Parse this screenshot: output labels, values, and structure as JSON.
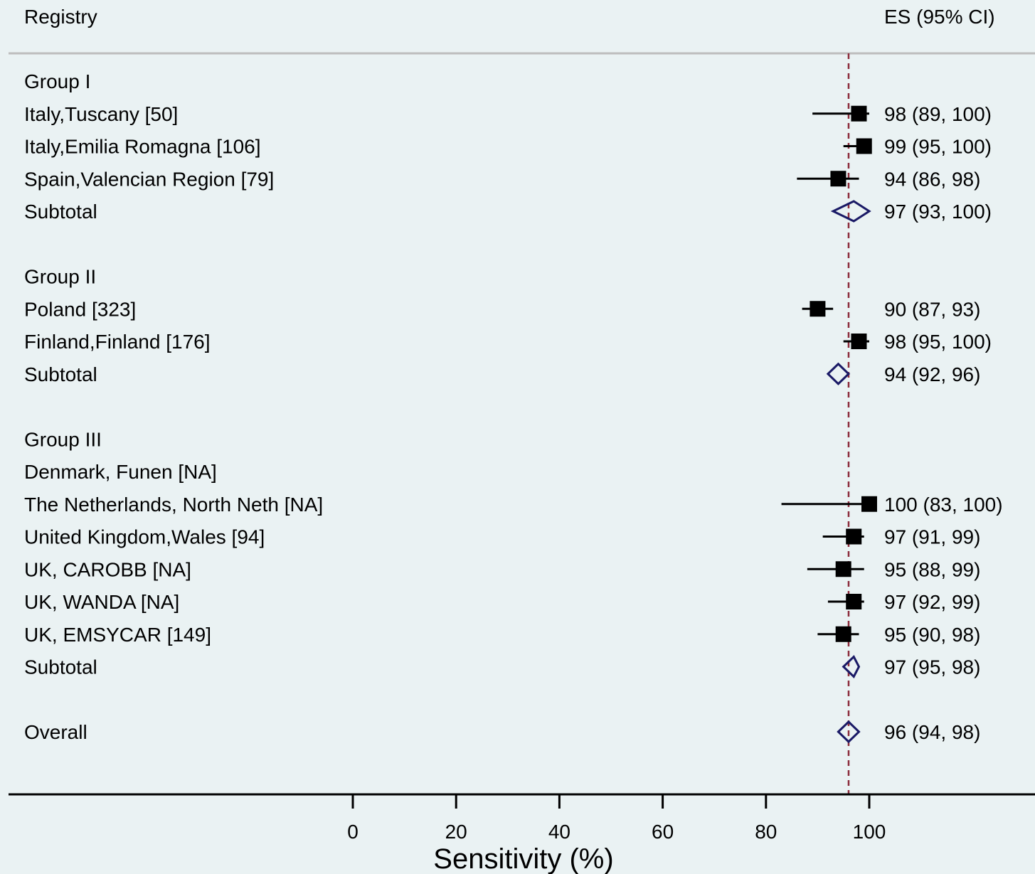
{
  "chart_data": {
    "type": "forest",
    "header": {
      "left": "Registry",
      "right": "ES (95% CI)"
    },
    "xlabel": "Sensitivity (%)",
    "xlim": [
      0,
      100
    ],
    "xticks": [
      0,
      20,
      40,
      60,
      80,
      100
    ],
    "reference_line": 96,
    "colors": {
      "background": "#eaf2f3",
      "study": "#000000",
      "pooled": "#1a1a66",
      "reference": "#8b2a3a",
      "divider": "#bdbdbd"
    },
    "rows": [
      {
        "kind": "group",
        "label": "Group I"
      },
      {
        "kind": "study",
        "label": "Italy,Tuscany [50]",
        "es": 98,
        "lo": 89,
        "hi": 100,
        "text": "98 (89, 100)"
      },
      {
        "kind": "study",
        "label": "Italy,Emilia Romagna [106]",
        "es": 99,
        "lo": 95,
        "hi": 100,
        "text": "99 (95, 100)"
      },
      {
        "kind": "study",
        "label": "Spain,Valencian Region [79]",
        "es": 94,
        "lo": 86,
        "hi": 98,
        "text": "94 (86, 98)"
      },
      {
        "kind": "subtotal",
        "label": "Subtotal",
        "es": 97,
        "lo": 93,
        "hi": 100,
        "text": "97 (93, 100)"
      },
      {
        "kind": "blank"
      },
      {
        "kind": "group",
        "label": "Group II"
      },
      {
        "kind": "study",
        "label": "Poland [323]",
        "es": 90,
        "lo": 87,
        "hi": 93,
        "text": "90 (87, 93)"
      },
      {
        "kind": "study",
        "label": "Finland,Finland [176]",
        "es": 98,
        "lo": 95,
        "hi": 100,
        "text": "98 (95, 100)"
      },
      {
        "kind": "subtotal",
        "label": "Subtotal",
        "es": 94,
        "lo": 92,
        "hi": 96,
        "text": "94 (92, 96)"
      },
      {
        "kind": "blank"
      },
      {
        "kind": "group",
        "label": "Group III"
      },
      {
        "kind": "study",
        "label": "Denmark, Funen [NA]"
      },
      {
        "kind": "study",
        "label": "The Netherlands, North Neth [NA]",
        "es": 100,
        "lo": 83,
        "hi": 100,
        "text": "100 (83, 100)"
      },
      {
        "kind": "study",
        "label": "United Kingdom,Wales [94]",
        "es": 97,
        "lo": 91,
        "hi": 99,
        "text": "97 (91, 99)"
      },
      {
        "kind": "study",
        "label": "UK, CAROBB [NA]",
        "es": 95,
        "lo": 88,
        "hi": 99,
        "text": "95 (88, 99)"
      },
      {
        "kind": "study",
        "label": "UK, WANDA [NA]",
        "es": 97,
        "lo": 92,
        "hi": 99,
        "text": "97 (92, 99)"
      },
      {
        "kind": "study",
        "label": "UK, EMSYCAR [149]",
        "es": 95,
        "lo": 90,
        "hi": 98,
        "text": "95 (90, 98)"
      },
      {
        "kind": "subtotal",
        "label": "Subtotal",
        "es": 97,
        "lo": 95,
        "hi": 98,
        "text": "97 (95, 98)"
      },
      {
        "kind": "blank"
      },
      {
        "kind": "overall",
        "label": "Overall",
        "es": 96,
        "lo": 94,
        "hi": 98,
        "text": "96 (94, 98)"
      }
    ]
  }
}
